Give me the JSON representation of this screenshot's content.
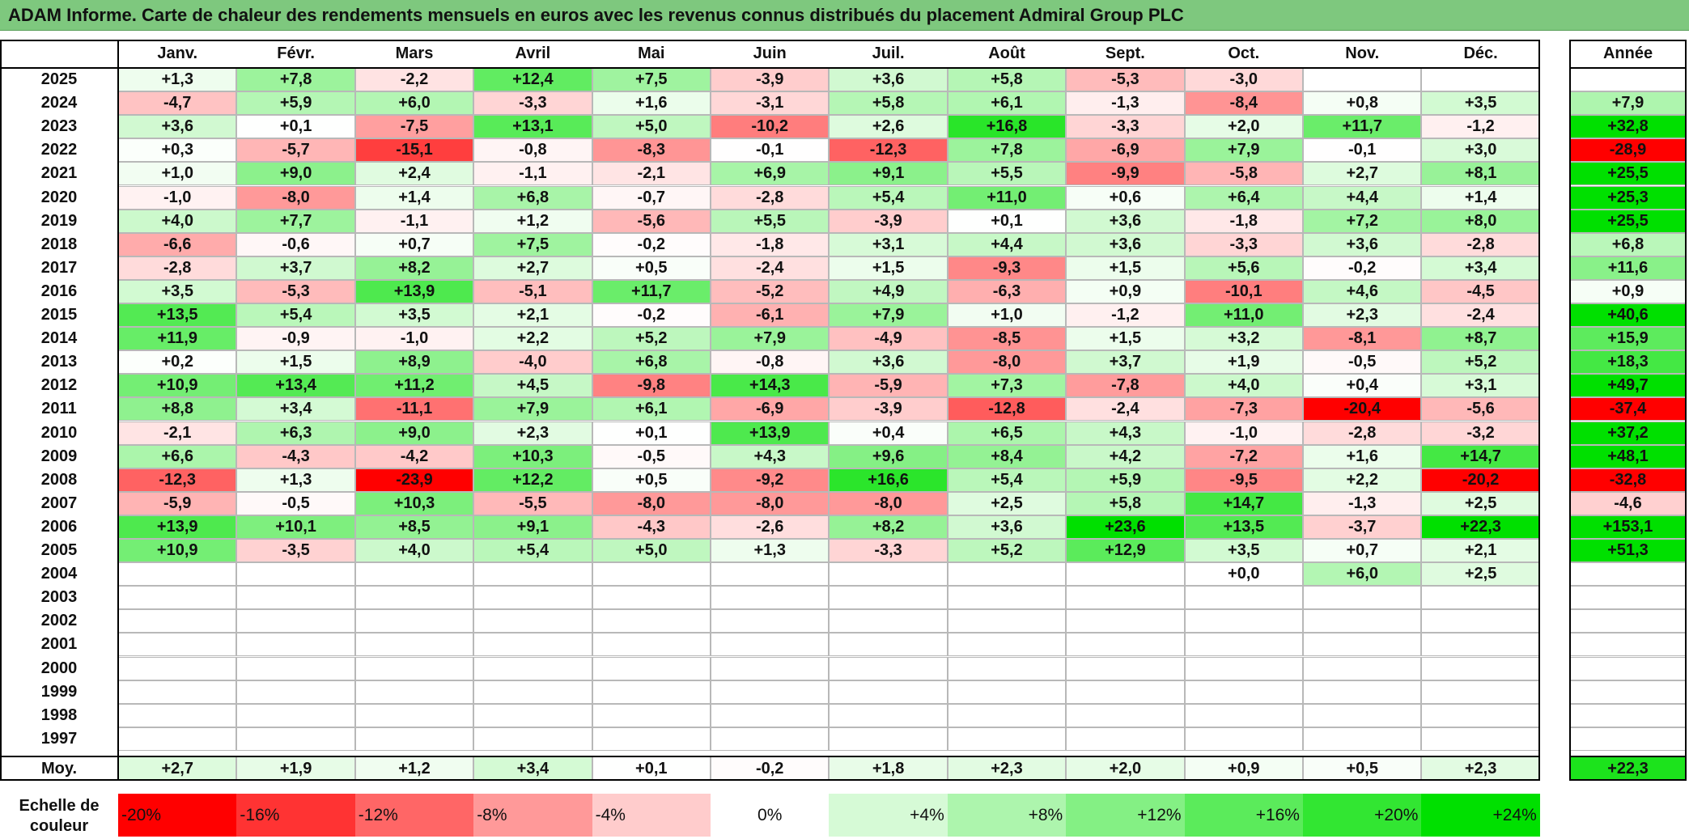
{
  "title": "ADAM Informe. Carte de chaleur des rendements mensuels en euros avec les revenus connus distribués du placement Admiral Group PLC",
  "chart_data": {
    "type": "heatmap",
    "title": "ADAM Informe. Carte de chaleur des rendements mensuels en euros avec les revenus connus distribués du placement Admiral Group PLC",
    "months": [
      "Janv.",
      "Févr.",
      "Mars",
      "Avril",
      "Mai",
      "Juin",
      "Juil.",
      "Août",
      "Sept.",
      "Oct.",
      "Nov.",
      "Déc."
    ],
    "annual_header": "Année",
    "rows": [
      {
        "year": "2025",
        "values": [
          "+1,3",
          "+7,8",
          "-2,2",
          "+12,4",
          "+7,5",
          "-3,9",
          "+3,6",
          "+5,8",
          "-5,3",
          "-3,0",
          "",
          ""
        ],
        "annual": ""
      },
      {
        "year": "2024",
        "values": [
          "-4,7",
          "+5,9",
          "+6,0",
          "-3,3",
          "+1,6",
          "-3,1",
          "+5,8",
          "+6,1",
          "-1,3",
          "-8,4",
          "+0,8",
          "+3,5"
        ],
        "annual": "+7,9"
      },
      {
        "year": "2023",
        "values": [
          "+3,6",
          "+0,1",
          "-7,5",
          "+13,1",
          "+5,0",
          "-10,2",
          "+2,6",
          "+16,8",
          "-3,3",
          "+2,0",
          "+11,7",
          "-1,2"
        ],
        "annual": "+32,8"
      },
      {
        "year": "2022",
        "values": [
          "+0,3",
          "-5,7",
          "-15,1",
          "-0,8",
          "-8,3",
          "-0,1",
          "-12,3",
          "+7,8",
          "-6,9",
          "+7,9",
          "-0,1",
          "+3,0"
        ],
        "annual": "-28,9"
      },
      {
        "year": "2021",
        "values": [
          "+1,0",
          "+9,0",
          "+2,4",
          "-1,1",
          "-2,1",
          "+6,9",
          "+9,1",
          "+5,5",
          "-9,9",
          "-5,8",
          "+2,7",
          "+8,1"
        ],
        "annual": "+25,5"
      },
      {
        "year": "2020",
        "values": [
          "-1,0",
          "-8,0",
          "+1,4",
          "+6,8",
          "-0,7",
          "-2,8",
          "+5,4",
          "+11,0",
          "+0,6",
          "+6,4",
          "+4,4",
          "+1,4"
        ],
        "annual": "+25,3"
      },
      {
        "year": "2019",
        "values": [
          "+4,0",
          "+7,7",
          "-1,1",
          "+1,2",
          "-5,6",
          "+5,5",
          "-3,9",
          "+0,1",
          "+3,6",
          "-1,8",
          "+7,2",
          "+8,0"
        ],
        "annual": "+25,5"
      },
      {
        "year": "2018",
        "values": [
          "-6,6",
          "-0,6",
          "+0,7",
          "+7,5",
          "-0,2",
          "-1,8",
          "+3,1",
          "+4,4",
          "+3,6",
          "-3,3",
          "+3,6",
          "-2,8"
        ],
        "annual": "+6,8"
      },
      {
        "year": "2017",
        "values": [
          "-2,8",
          "+3,7",
          "+8,2",
          "+2,7",
          "+0,5",
          "-2,4",
          "+1,5",
          "-9,3",
          "+1,5",
          "+5,6",
          "-0,2",
          "+3,4"
        ],
        "annual": "+11,6"
      },
      {
        "year": "2016",
        "values": [
          "+3,5",
          "-5,3",
          "+13,9",
          "-5,1",
          "+11,7",
          "-5,2",
          "+4,9",
          "-6,3",
          "+0,9",
          "-10,1",
          "+4,6",
          "-4,5"
        ],
        "annual": "+0,9"
      },
      {
        "year": "2015",
        "values": [
          "+13,5",
          "+5,4",
          "+3,5",
          "+2,1",
          "-0,2",
          "-6,1",
          "+7,9",
          "+1,0",
          "-1,2",
          "+11,0",
          "+2,3",
          "-2,4"
        ],
        "annual": "+40,6"
      },
      {
        "year": "2014",
        "values": [
          "+11,9",
          "-0,9",
          "-1,0",
          "+2,2",
          "+5,2",
          "+7,9",
          "-4,9",
          "-8,5",
          "+1,5",
          "+3,2",
          "-8,1",
          "+8,7"
        ],
        "annual": "+15,9"
      },
      {
        "year": "2013",
        "values": [
          "+0,2",
          "+1,5",
          "+8,9",
          "-4,0",
          "+6,8",
          "-0,8",
          "+3,6",
          "-8,0",
          "+3,7",
          "+1,9",
          "-0,5",
          "+5,2"
        ],
        "annual": "+18,3"
      },
      {
        "year": "2012",
        "values": [
          "+10,9",
          "+13,4",
          "+11,2",
          "+4,5",
          "-9,8",
          "+14,3",
          "-5,9",
          "+7,3",
          "-7,8",
          "+4,0",
          "+0,4",
          "+3,1"
        ],
        "annual": "+49,7"
      },
      {
        "year": "2011",
        "values": [
          "+8,8",
          "+3,4",
          "-11,1",
          "+7,9",
          "+6,1",
          "-6,9",
          "-3,9",
          "-12,8",
          "-2,4",
          "-7,3",
          "-20,4",
          "-5,6"
        ],
        "annual": "-37,4"
      },
      {
        "year": "2010",
        "values": [
          "-2,1",
          "+6,3",
          "+9,0",
          "+2,3",
          "+0,1",
          "+13,9",
          "+0,4",
          "+6,5",
          "+4,3",
          "-1,0",
          "-2,8",
          "-3,2"
        ],
        "annual": "+37,2"
      },
      {
        "year": "2009",
        "values": [
          "+6,6",
          "-4,3",
          "-4,2",
          "+10,3",
          "-0,5",
          "+4,3",
          "+9,6",
          "+8,4",
          "+4,2",
          "-7,2",
          "+1,6",
          "+14,7"
        ],
        "annual": "+48,1"
      },
      {
        "year": "2008",
        "values": [
          "-12,3",
          "+1,3",
          "-23,9",
          "+12,2",
          "+0,5",
          "-9,2",
          "+16,6",
          "+5,4",
          "+5,9",
          "-9,5",
          "+2,2",
          "-20,2"
        ],
        "annual": "-32,8"
      },
      {
        "year": "2007",
        "values": [
          "-5,9",
          "-0,5",
          "+10,3",
          "-5,5",
          "-8,0",
          "-8,0",
          "-8,0",
          "+2,5",
          "+5,8",
          "+14,7",
          "-1,3",
          "+2,5"
        ],
        "annual": "-4,6"
      },
      {
        "year": "2006",
        "values": [
          "+13,9",
          "+10,1",
          "+8,5",
          "+9,1",
          "-4,3",
          "-2,6",
          "+8,2",
          "+3,6",
          "+23,6",
          "+13,5",
          "-3,7",
          "+22,3"
        ],
        "annual": "+153,1"
      },
      {
        "year": "2005",
        "values": [
          "+10,9",
          "-3,5",
          "+4,0",
          "+5,4",
          "+5,0",
          "+1,3",
          "-3,3",
          "+5,2",
          "+12,9",
          "+3,5",
          "+0,7",
          "+2,1"
        ],
        "annual": "+51,3"
      },
      {
        "year": "2004",
        "values": [
          "",
          "",
          "",
          "",
          "",
          "",
          "",
          "",
          "",
          "+0,0",
          "+6,0",
          "+2,5"
        ],
        "annual": ""
      },
      {
        "year": "2003",
        "values": [
          "",
          "",
          "",
          "",
          "",
          "",
          "",
          "",
          "",
          "",
          "",
          ""
        ],
        "annual": ""
      },
      {
        "year": "2002",
        "values": [
          "",
          "",
          "",
          "",
          "",
          "",
          "",
          "",
          "",
          "",
          "",
          ""
        ],
        "annual": ""
      },
      {
        "year": "2001",
        "values": [
          "",
          "",
          "",
          "",
          "",
          "",
          "",
          "",
          "",
          "",
          "",
          ""
        ],
        "annual": ""
      },
      {
        "year": "2000",
        "values": [
          "",
          "",
          "",
          "",
          "",
          "",
          "",
          "",
          "",
          "",
          "",
          ""
        ],
        "annual": ""
      },
      {
        "year": "1999",
        "values": [
          "",
          "",
          "",
          "",
          "",
          "",
          "",
          "",
          "",
          "",
          "",
          ""
        ],
        "annual": ""
      },
      {
        "year": "1998",
        "values": [
          "",
          "",
          "",
          "",
          "",
          "",
          "",
          "",
          "",
          "",
          "",
          ""
        ],
        "annual": ""
      },
      {
        "year": "1997",
        "values": [
          "",
          "",
          "",
          "",
          "",
          "",
          "",
          "",
          "",
          "",
          "",
          ""
        ],
        "annual": ""
      }
    ],
    "average": {
      "label": "Moy.",
      "values": [
        "+2,7",
        "+1,9",
        "+1,2",
        "+3,4",
        "+0,1",
        "-0,2",
        "+1,8",
        "+2,3",
        "+2,0",
        "+0,9",
        "+0,5",
        "+2,3"
      ],
      "annual": "+22,3"
    },
    "color_scale": {
      "label": "Echelle de couleur",
      "stops": [
        {
          "label": "-20%",
          "value": -20,
          "color": "#ff0000"
        },
        {
          "label": "-16%",
          "value": -16,
          "color": "#ff3333"
        },
        {
          "label": "-12%",
          "value": -12,
          "color": "#ff6666"
        },
        {
          "label": "-8%",
          "value": -8,
          "color": "#ff9999"
        },
        {
          "label": "-4%",
          "value": -4,
          "color": "#ffcccc"
        },
        {
          "label": "0%",
          "value": 0,
          "color": "#ffffff"
        },
        {
          "label": "+4%",
          "value": 4,
          "color": "#d6fad6"
        },
        {
          "label": "+8%",
          "value": 8,
          "color": "#adf5ad"
        },
        {
          "label": "+12%",
          "value": 12,
          "color": "#84f084"
        },
        {
          "label": "+16%",
          "value": 16,
          "color": "#5beb5b"
        },
        {
          "label": "+20%",
          "value": 20,
          "color": "#32e632"
        },
        {
          "label": "+24%",
          "value": 24,
          "color": "#00e000"
        }
      ]
    },
    "colors": {
      "title_background": "#7ec87e"
    }
  }
}
